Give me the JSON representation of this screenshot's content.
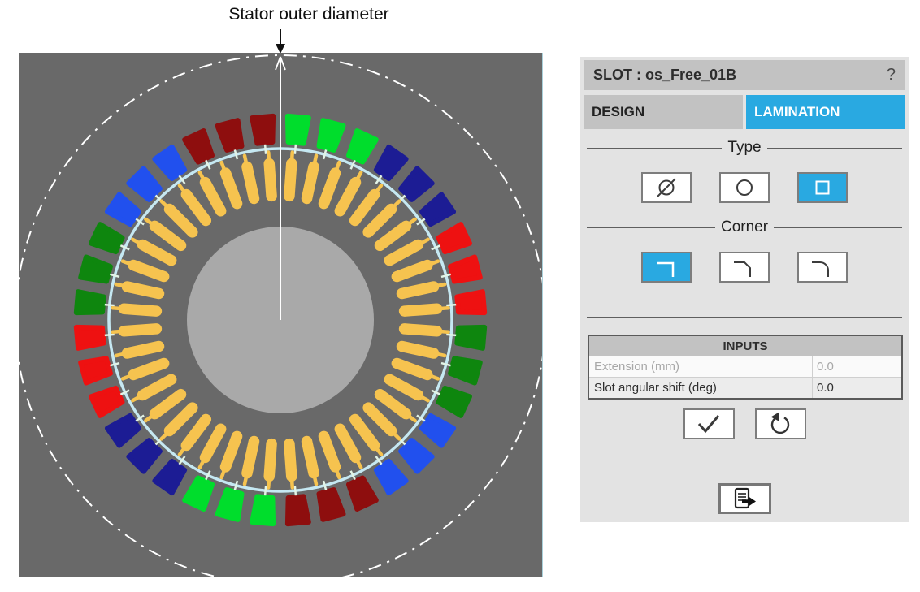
{
  "annotation": {
    "label": "Stator outer diameter",
    "arrow_color": "#111111"
  },
  "viewer": {
    "background_color": "#696969",
    "shaft_color": "#a9a9a9",
    "bore_ring_color": "#c5e8f2",
    "slot_opening_tick_color": "#e2f3e6",
    "outer_boundary": {
      "style": "dash-dot",
      "color": "#ffffff"
    },
    "radius_line_color": "#ffffff",
    "stator": {
      "slot_count": 36,
      "slots_per_group": 3,
      "group_color_order": [
        "lime-green",
        "navy",
        "red",
        "dark-green",
        "blue",
        "maroon"
      ],
      "group_colors": {
        "lime-green": "#00dd2c",
        "navy": "#1c1c94",
        "red": "#ee1111",
        "dark-green": "#0e860e",
        "blue": "#2150ee",
        "maroon": "#8e0e0e"
      }
    },
    "rotor": {
      "bar_count": 44,
      "bar_color": "#f6c34f"
    }
  },
  "panel": {
    "title": "SLOT : os_Free_01B",
    "help_label": "?",
    "accent_color": "#29a9e1",
    "tabs": [
      {
        "label": "DESIGN",
        "active": false
      },
      {
        "label": "LAMINATION",
        "active": true
      }
    ],
    "type_group": {
      "label": "Type",
      "options": [
        {
          "name": "no-slot",
          "icon": "slashed-circle-icon",
          "selected": false
        },
        {
          "name": "circle",
          "icon": "circle-icon",
          "selected": false
        },
        {
          "name": "square",
          "icon": "square-icon",
          "selected": true
        }
      ]
    },
    "corner_group": {
      "label": "Corner",
      "options": [
        {
          "name": "sharp",
          "icon": "corner-sharp-icon",
          "selected": true
        },
        {
          "name": "chamfer",
          "icon": "corner-chamfer-icon",
          "selected": false
        },
        {
          "name": "round",
          "icon": "corner-round-icon",
          "selected": false
        }
      ]
    },
    "inputs_table": {
      "header": "INPUTS",
      "rows": [
        {
          "label": "Extension (mm)",
          "value": "0.0",
          "enabled": false
        },
        {
          "label": "Slot angular shift (deg)",
          "value": "0.0",
          "enabled": true
        }
      ]
    },
    "actions": {
      "apply_icon": "check-icon",
      "reset_icon": "reset-icon",
      "export_icon": "export-icon"
    }
  }
}
